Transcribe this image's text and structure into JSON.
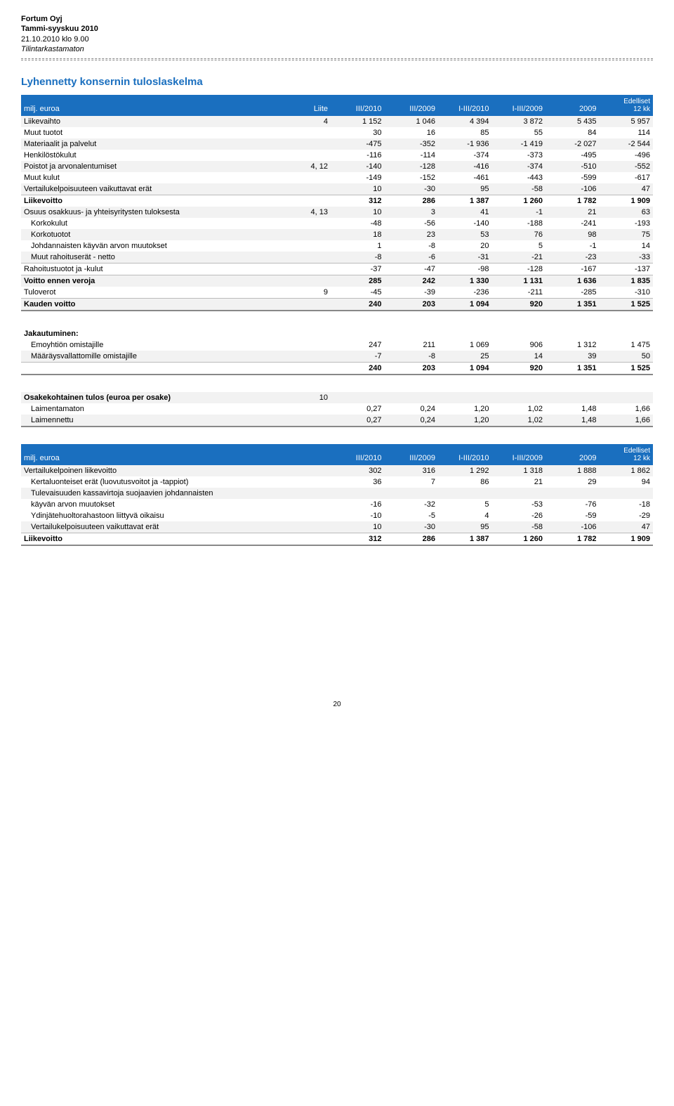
{
  "header": {
    "company": "Fortum Oyj",
    "period": "Tammi-syyskuu 2010",
    "datetime": "21.10.2010 klo 9.00",
    "status": "Tilintarkastamaton"
  },
  "section_title": "Lyhennetty konsernin tuloslaskelma",
  "table1": {
    "columns": {
      "rowlabel": "milj. euroa",
      "liite": "Liite",
      "c1": "III/2010",
      "c2": "III/2009",
      "c3": "I-III/2010",
      "c4": "I-III/2009",
      "c5": "2009",
      "c6a": "Edelliset",
      "c6b": "12 kk"
    },
    "rows": [
      {
        "label": "Liikevaihto",
        "liite": "4",
        "v": [
          "1 152",
          "1 046",
          "4 394",
          "3 872",
          "5 435",
          "5 957"
        ],
        "shade": true
      },
      {
        "label": "Muut tuotot",
        "liite": "",
        "v": [
          "30",
          "16",
          "85",
          "55",
          "84",
          "114"
        ],
        "shade": false
      },
      {
        "label": "Materiaalit ja palvelut",
        "liite": "",
        "v": [
          "-475",
          "-352",
          "-1 936",
          "-1 419",
          "-2 027",
          "-2 544"
        ],
        "shade": true
      },
      {
        "label": "Henkilöstökulut",
        "liite": "",
        "v": [
          "-116",
          "-114",
          "-374",
          "-373",
          "-495",
          "-496"
        ],
        "shade": false
      },
      {
        "label": "Poistot ja arvonalentumiset",
        "liite": "4, 12",
        "v": [
          "-140",
          "-128",
          "-416",
          "-374",
          "-510",
          "-552"
        ],
        "shade": true
      },
      {
        "label": "Muut kulut",
        "liite": "",
        "v": [
          "-149",
          "-152",
          "-461",
          "-443",
          "-599",
          "-617"
        ],
        "shade": false
      },
      {
        "label": "Vertailukelpoisuuteen vaikuttavat erät",
        "liite": "",
        "v": [
          "10",
          "-30",
          "95",
          "-58",
          "-106",
          "47"
        ],
        "shade": true,
        "thinBottom": true
      },
      {
        "label": "Liikevoitto",
        "liite": "",
        "v": [
          "312",
          "286",
          "1 387",
          "1 260",
          "1 782",
          "1 909"
        ],
        "shade": false,
        "bold": true
      },
      {
        "label": "Osuus osakkuus- ja yhteisyritysten tuloksesta",
        "liite": "4, 13",
        "v": [
          "10",
          "3",
          "41",
          "-1",
          "21",
          "63"
        ],
        "shade": true
      },
      {
        "label": "Korkokulut",
        "liite": "",
        "v": [
          "-48",
          "-56",
          "-140",
          "-188",
          "-241",
          "-193"
        ],
        "shade": false,
        "indent": true
      },
      {
        "label": "Korkotuotot",
        "liite": "",
        "v": [
          "18",
          "23",
          "53",
          "76",
          "98",
          "75"
        ],
        "shade": true,
        "indent": true
      },
      {
        "label": "Johdannaisten käyvän arvon muutokset",
        "liite": "",
        "v": [
          "1",
          "-8",
          "20",
          "5",
          "-1",
          "14"
        ],
        "shade": false,
        "indent": true
      },
      {
        "label": "Muut rahoituserät - netto",
        "liite": "",
        "v": [
          "-8",
          "-6",
          "-31",
          "-21",
          "-23",
          "-33"
        ],
        "shade": true,
        "indent": true,
        "thinBottom": true
      },
      {
        "label": "Rahoitustuotot ja -kulut",
        "liite": "",
        "v": [
          "-37",
          "-47",
          "-98",
          "-128",
          "-167",
          "-137"
        ],
        "shade": false,
        "thinBottom": true
      },
      {
        "label": "Voitto ennen veroja",
        "liite": "",
        "v": [
          "285",
          "242",
          "1 330",
          "1 131",
          "1 636",
          "1 835"
        ],
        "shade": true,
        "bold": true
      },
      {
        "label": "Tuloverot",
        "liite": "9",
        "v": [
          "-45",
          "-39",
          "-236",
          "-211",
          "-285",
          "-310"
        ],
        "shade": false,
        "thinBottom": true
      },
      {
        "label": "Kauden voitto",
        "liite": "",
        "v": [
          "240",
          "203",
          "1 094",
          "920",
          "1 351",
          "1 525"
        ],
        "shade": true,
        "bold": true,
        "doubleBottom": true
      }
    ],
    "jakautuminen_label": "Jakautuminen:",
    "jakautuminen": [
      {
        "label": "Emoyhtiön omistajille",
        "v": [
          "247",
          "211",
          "1 069",
          "906",
          "1 312",
          "1 475"
        ],
        "shade": false,
        "indent": true
      },
      {
        "label": "Määräysvallattomille omistajille",
        "v": [
          "-7",
          "-8",
          "25",
          "14",
          "39",
          "50"
        ],
        "shade": true,
        "indent": true,
        "thinBottom": true
      },
      {
        "label": "",
        "v": [
          "240",
          "203",
          "1 094",
          "920",
          "1 351",
          "1 525"
        ],
        "shade": false,
        "bold": true,
        "doubleBottom": true
      }
    ],
    "eps_label": "Osakekohtainen tulos (euroa per osake)",
    "eps_liite": "10",
    "eps": [
      {
        "label": "Laimentamaton",
        "v": [
          "0,27",
          "0,24",
          "1,20",
          "1,02",
          "1,48",
          "1,66"
        ],
        "shade": false,
        "indent": true
      },
      {
        "label": "Laimennettu",
        "v": [
          "0,27",
          "0,24",
          "1,20",
          "1,02",
          "1,48",
          "1,66"
        ],
        "shade": true,
        "indent": true,
        "doubleBottom": true
      }
    ]
  },
  "table2": {
    "columns": {
      "rowlabel": "milj. euroa",
      "c1": "III/2010",
      "c2": "III/2009",
      "c3": "I-III/2010",
      "c4": "I-III/2009",
      "c5": "2009",
      "c6a": "Edelliset",
      "c6b": "12 kk"
    },
    "rows": [
      {
        "label": "Vertailukelpoinen liikevoitto",
        "v": [
          "302",
          "316",
          "1 292",
          "1 318",
          "1 888",
          "1 862"
        ],
        "shade": true
      },
      {
        "label": "Kertaluonteiset erät (luovutusvoitot ja -tappiot)",
        "v": [
          "36",
          "7",
          "86",
          "21",
          "29",
          "94"
        ],
        "shade": false,
        "indent": true
      },
      {
        "label": "Tulevaisuuden kassavirtoja suojaavien johdannaisten käyvän arvon muutokset",
        "v": [
          "-16",
          "-32",
          "5",
          "-53",
          "-76",
          "-18"
        ],
        "shade": true,
        "indent": true,
        "wrap": true
      },
      {
        "label": "Ydinjätehuoltorahastoon liittyvä oikaisu",
        "v": [
          "-10",
          "-5",
          "4",
          "-26",
          "-59",
          "-29"
        ],
        "shade": false,
        "indent": true
      },
      {
        "label": "Vertailukelpoisuuteen vaikuttavat erät",
        "v": [
          "10",
          "-30",
          "95",
          "-58",
          "-106",
          "47"
        ],
        "shade": true,
        "indent": true,
        "thinBottom": true
      },
      {
        "label": "Liikevoitto",
        "v": [
          "312",
          "286",
          "1 387",
          "1 260",
          "1 782",
          "1 909"
        ],
        "shade": false,
        "bold": true,
        "doubleBottom": true
      }
    ]
  },
  "page_number": "20",
  "colors": {
    "header_bg": "#1a6fbf",
    "header_text": "#ffffff",
    "title_text": "#1a6fbf",
    "shade_bg": "#f2f2f2",
    "divider": "#888888"
  }
}
